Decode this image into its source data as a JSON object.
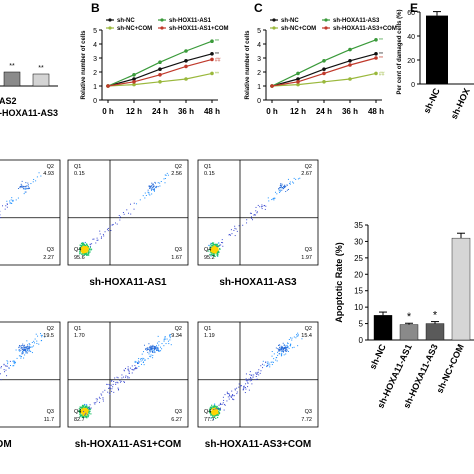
{
  "panels": {
    "b": "B",
    "c": "C",
    "e": "E"
  },
  "top_left": {
    "bar_labels": [
      "-AS2",
      "-HOXA11-AS3"
    ],
    "sig": [
      "**",
      "**"
    ]
  },
  "chart_data": [
    {
      "type": "line",
      "panel": "B",
      "x": [
        "0 h",
        "12 h",
        "24 h",
        "36 h",
        "48 h"
      ],
      "xlabel": "",
      "ylabel": "Relative number of cells",
      "ylim": [
        0,
        5
      ],
      "yticks": [
        "0",
        "1",
        "2",
        "3",
        "4",
        "5"
      ],
      "legend_position": "top-left",
      "series": [
        {
          "name": "sh-NC",
          "color": "#111111",
          "values": [
            1.0,
            1.5,
            2.2,
            2.8,
            3.3
          ]
        },
        {
          "name": "sh-HOX11-AS1",
          "color": "#3a9a3a",
          "values": [
            1.0,
            1.8,
            2.7,
            3.5,
            4.2
          ]
        },
        {
          "name": "sh-NC+COM",
          "color": "#9ab83c",
          "values": [
            1.0,
            1.1,
            1.3,
            1.5,
            1.9
          ]
        },
        {
          "name": "sh-HOX11-AS1+COM",
          "color": "#c0392b",
          "values": [
            1.0,
            1.3,
            1.8,
            2.4,
            2.9
          ]
        }
      ],
      "annotations": [
        "**",
        "**",
        "**",
        "##",
        "**"
      ]
    },
    {
      "type": "line",
      "panel": "C",
      "x": [
        "0 h",
        "12 h",
        "24 h",
        "36 h",
        "48 h"
      ],
      "xlabel": "",
      "ylabel": "Relative number of cells",
      "ylim": [
        0,
        5
      ],
      "yticks": [
        "0",
        "1",
        "2",
        "3",
        "4",
        "5"
      ],
      "legend_position": "top-left",
      "series": [
        {
          "name": "sh-NC",
          "color": "#111111",
          "values": [
            1.0,
            1.5,
            2.2,
            2.8,
            3.3
          ]
        },
        {
          "name": "sh-HOXA11-AS3",
          "color": "#3a9a3a",
          "values": [
            1.0,
            1.9,
            2.8,
            3.6,
            4.3
          ]
        },
        {
          "name": "sh-NC+COM",
          "color": "#9ab83c",
          "values": [
            1.0,
            1.1,
            1.3,
            1.5,
            1.9
          ]
        },
        {
          "name": "sh-HOXA11-AS3+COM",
          "color": "#c0392b",
          "values": [
            1.0,
            1.3,
            1.9,
            2.5,
            3.0
          ]
        }
      ],
      "annotations": [
        "**",
        "**",
        "##",
        "**",
        "**"
      ]
    },
    {
      "type": "bar",
      "panel": "E",
      "categories": [
        "sh-NC",
        "sh-HOX"
      ],
      "values": [
        57,
        null
      ],
      "ylabel": "Per cent of damaged cells (%)",
      "ylim": [
        0,
        60
      ],
      "yticks": [
        "0",
        "20",
        "40",
        "60"
      ]
    },
    {
      "type": "bar",
      "panel": "apoptosis",
      "categories": [
        "sh-NC",
        "sh-HOXA11-AS1",
        "sh-HOXA11-AS3",
        "sh-NC+COM"
      ],
      "values": [
        7.5,
        4.7,
        5.0,
        31
      ],
      "errors": [
        1.0,
        0.4,
        0.6,
        1.5
      ],
      "colors": [
        "#000000",
        "#8a8a8a",
        "#5a5a5a",
        "#d6d6d6"
      ],
      "significance": [
        "",
        "*",
        "*",
        ""
      ],
      "ylabel": "Apoptotic Rate (%)",
      "ylim": [
        0,
        35
      ],
      "yticks": [
        "0",
        "5",
        "10",
        "15",
        "20",
        "25",
        "30",
        "35"
      ]
    }
  ],
  "flow": {
    "row1": [
      {
        "caption": "",
        "q1": "",
        "q2": "Q2",
        "q2v": "4.93",
        "q3": "Q3",
        "q3v": "2.27",
        "q4": "",
        "q4v": "",
        "q1v": ""
      },
      {
        "caption": "sh-HOXA11-AS1",
        "q1": "Q1",
        "q1v": "0.15",
        "q2": "Q2",
        "q2v": "2.56",
        "q3": "Q3",
        "q3v": "1.67",
        "q4": "Q4",
        "q4v": "95.6"
      },
      {
        "caption": "sh-HOXA11-AS3",
        "q1": "Q1",
        "q1v": "0.15",
        "q2": "Q2",
        "q2v": "2.67",
        "q3": "Q3",
        "q3v": "1.97",
        "q4": "Q4",
        "q4v": "95.2"
      }
    ],
    "row2": [
      {
        "caption": "COM",
        "q1": "",
        "q1v": "",
        "q2": "Q2",
        "q2v": "19.5",
        "q3": "Q3",
        "q3v": "11.7",
        "q4": "",
        "q4v": ""
      },
      {
        "caption": "sh-HOXA11-AS1+COM",
        "q1": "Q1",
        "q1v": "1.70",
        "q2": "Q2",
        "q2v": "9.34",
        "q3": "Q3",
        "q3v": "6.27",
        "q4": "Q4",
        "q4v": "82.7"
      },
      {
        "caption": "sh-HOXA11-AS3+COM",
        "q1": "Q1",
        "q1v": "1.19",
        "q2": "Q2",
        "q2v": "15.4",
        "q3": "Q3",
        "q3v": "7.72",
        "q4": "Q4",
        "q4v": "77.7"
      }
    ]
  },
  "row1_left_q4": "95.6",
  "row1_left_q4b": "95.2"
}
